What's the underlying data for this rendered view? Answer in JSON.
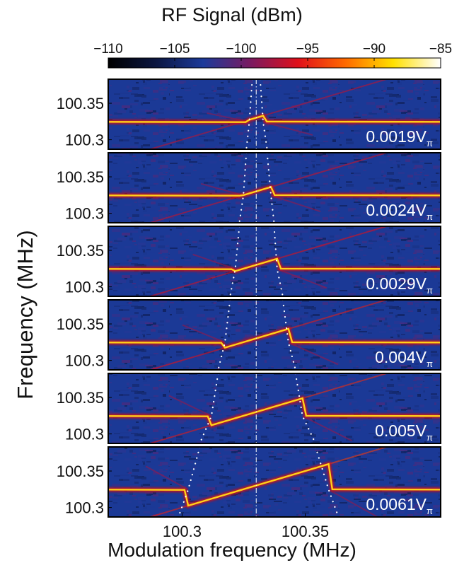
{
  "chart_data": {
    "type": "heatmap",
    "colorbar": {
      "label": "RF Signal (dBm)",
      "range": [
        -110,
        -85
      ],
      "ticks": [
        "−110",
        "−105",
        "−100",
        "−95",
        "−90",
        "−85"
      ],
      "tick_values": [
        -110,
        -105,
        -100,
        -95,
        -90,
        -85
      ],
      "colormap": "hot-on-dark-blue",
      "colors": [
        "#000000",
        "#0b1640",
        "#1c3a9a",
        "#7a1a60",
        "#e0101a",
        "#ff6a00",
        "#ffe000",
        "#ffffff"
      ]
    },
    "xlabel": "Modulation frequency (MHz)",
    "ylabel": "Frequency (MHz)",
    "xlim": [
      100.27,
      100.405
    ],
    "ylim": [
      100.287,
      100.383
    ],
    "xticks": [
      100.3,
      100.35
    ],
    "xtick_labels": [
      "100.3",
      "100.35"
    ],
    "yticks": [
      100.3,
      100.35
    ],
    "ytick_labels": [
      "100.3",
      "100.35"
    ],
    "background_level_dBm": -103,
    "horizontal_branch_frequency_MHz": 100.3245,
    "dashdot_marker_x_MHz": 100.3301,
    "dotted_curve_color": "#ffffff",
    "panels": [
      {
        "amplitude_label": "0.0019V",
        "amplitude_subscript": "π",
        "locking_range_MHz": [
          100.3273,
          100.3329
        ]
      },
      {
        "amplitude_label": "0.0024V",
        "amplitude_subscript": "π",
        "locking_range_MHz": [
          100.3249,
          100.3361
        ]
      },
      {
        "amplitude_label": "0.0029V",
        "amplitude_subscript": "π",
        "locking_range_MHz": [
          100.3216,
          100.3386
        ]
      },
      {
        "amplitude_label": "0.004V",
        "amplitude_subscript": "π",
        "locking_range_MHz": [
          100.3174,
          100.3432
        ]
      },
      {
        "amplitude_label": "0.005V",
        "amplitude_subscript": "π",
        "locking_range_MHz": [
          100.3119,
          100.3489
        ]
      },
      {
        "amplitude_label": "0.0061V",
        "amplitude_subscript": "π",
        "locking_range_MHz": [
          100.3025,
          100.3595
        ]
      }
    ]
  }
}
